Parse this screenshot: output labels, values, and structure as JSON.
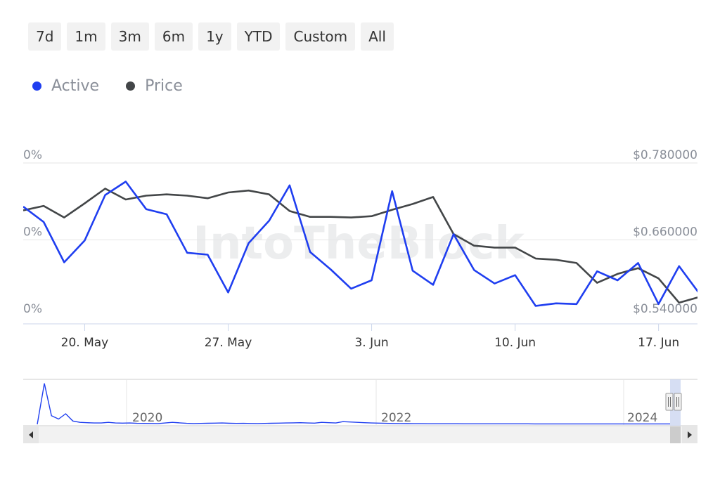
{
  "range_buttons": [
    "7d",
    "1m",
    "3m",
    "6m",
    "1y",
    "YTD",
    "Custom",
    "All"
  ],
  "legend": [
    {
      "label": "Active",
      "color": "#1f3ef0"
    },
    {
      "label": "Price",
      "color": "#434648"
    }
  ],
  "watermark": "IntoTheBlock",
  "navigator": {
    "year_labels": [
      "2020",
      "2022",
      "2024"
    ],
    "scroll_left_icon": "arrow-left-icon",
    "scroll_right_icon": "arrow-right-icon"
  },
  "chart_data": {
    "type": "line",
    "x": [
      "2024-05-17",
      "2024-05-18",
      "2024-05-19",
      "2024-05-20",
      "2024-05-21",
      "2024-05-22",
      "2024-05-23",
      "2024-05-24",
      "2024-05-25",
      "2024-05-26",
      "2024-05-27",
      "2024-05-28",
      "2024-05-29",
      "2024-05-30",
      "2024-05-31",
      "2024-06-01",
      "2024-06-02",
      "2024-06-03",
      "2024-06-04",
      "2024-06-05",
      "2024-06-06",
      "2024-06-07",
      "2024-06-08",
      "2024-06-09",
      "2024-06-10",
      "2024-06-11",
      "2024-06-12",
      "2024-06-13",
      "2024-06-14",
      "2024-06-15",
      "2024-06-16",
      "2024-06-17",
      "2024-06-18",
      "2024-06-19"
    ],
    "x_tick_labels": [
      "20. May",
      "27. May",
      "3. Jun",
      "10. Jun",
      "17. Jun"
    ],
    "x_tick_dates": [
      "2024-05-20",
      "2024-05-27",
      "2024-06-03",
      "2024-06-10",
      "2024-06-17"
    ],
    "left_axis": {
      "tick_labels": [
        "0%",
        "0%",
        "0%"
      ],
      "ticks": [
        0.78,
        0.66,
        0.54
      ]
    },
    "right_axis": {
      "tick_labels": [
        "$0.780000",
        "$0.660000",
        "$0.540000"
      ],
      "ylim": [
        0.54,
        0.78
      ]
    },
    "series": [
      {
        "name": "Active",
        "color": "#1f3ef0",
        "values": [
          0.712,
          0.688,
          0.625,
          0.659,
          0.73,
          0.751,
          0.708,
          0.7,
          0.64,
          0.637,
          0.578,
          0.655,
          0.69,
          0.745,
          0.641,
          0.614,
          0.584,
          0.597,
          0.736,
          0.612,
          0.59,
          0.669,
          0.613,
          0.592,
          0.605,
          0.557,
          0.561,
          0.56,
          0.611,
          0.597,
          0.624,
          0.56,
          0.619,
          0.576
        ]
      },
      {
        "name": "Price",
        "color": "#434648",
        "values": [
          0.706,
          0.713,
          0.695,
          0.717,
          0.74,
          0.723,
          0.729,
          0.731,
          0.729,
          0.725,
          0.734,
          0.737,
          0.731,
          0.705,
          0.696,
          0.696,
          0.695,
          0.697,
          0.707,
          0.716,
          0.727,
          0.669,
          0.651,
          0.648,
          0.648,
          0.631,
          0.629,
          0.624,
          0.593,
          0.607,
          0.616,
          0.6,
          0.562,
          0.571
        ]
      }
    ],
    "navigator_series": [
      0.0,
      0.62,
      0.13,
      0.08,
      0.16,
      0.05,
      0.03,
      0.025,
      0.02,
      0.02,
      0.03,
      0.02,
      0.018,
      0.02,
      0.015,
      0.014,
      0.013,
      0.012,
      0.02,
      0.03,
      0.022,
      0.015,
      0.012,
      0.014,
      0.016,
      0.018,
      0.02,
      0.016,
      0.014,
      0.015,
      0.013,
      0.012,
      0.014,
      0.016,
      0.018,
      0.02,
      0.022,
      0.024,
      0.02,
      0.018,
      0.03,
      0.025,
      0.02,
      0.04,
      0.035,
      0.03,
      0.025,
      0.02,
      0.018,
      0.015,
      0.013,
      0.012,
      0.011,
      0.01,
      0.01,
      0.009,
      0.009,
      0.008,
      0.008,
      0.008,
      0.007,
      0.007,
      0.007,
      0.007,
      0.007,
      0.007,
      0.007,
      0.007,
      0.007,
      0.007,
      0.006,
      0.006,
      0.006,
      0.006,
      0.006,
      0.006,
      0.006,
      0.006,
      0.006,
      0.006,
      0.006,
      0.006,
      0.006,
      0.006,
      0.006,
      0.006,
      0.006,
      0.006,
      0.006,
      0.006
    ],
    "grid": true,
    "legend_position": "top-left"
  }
}
